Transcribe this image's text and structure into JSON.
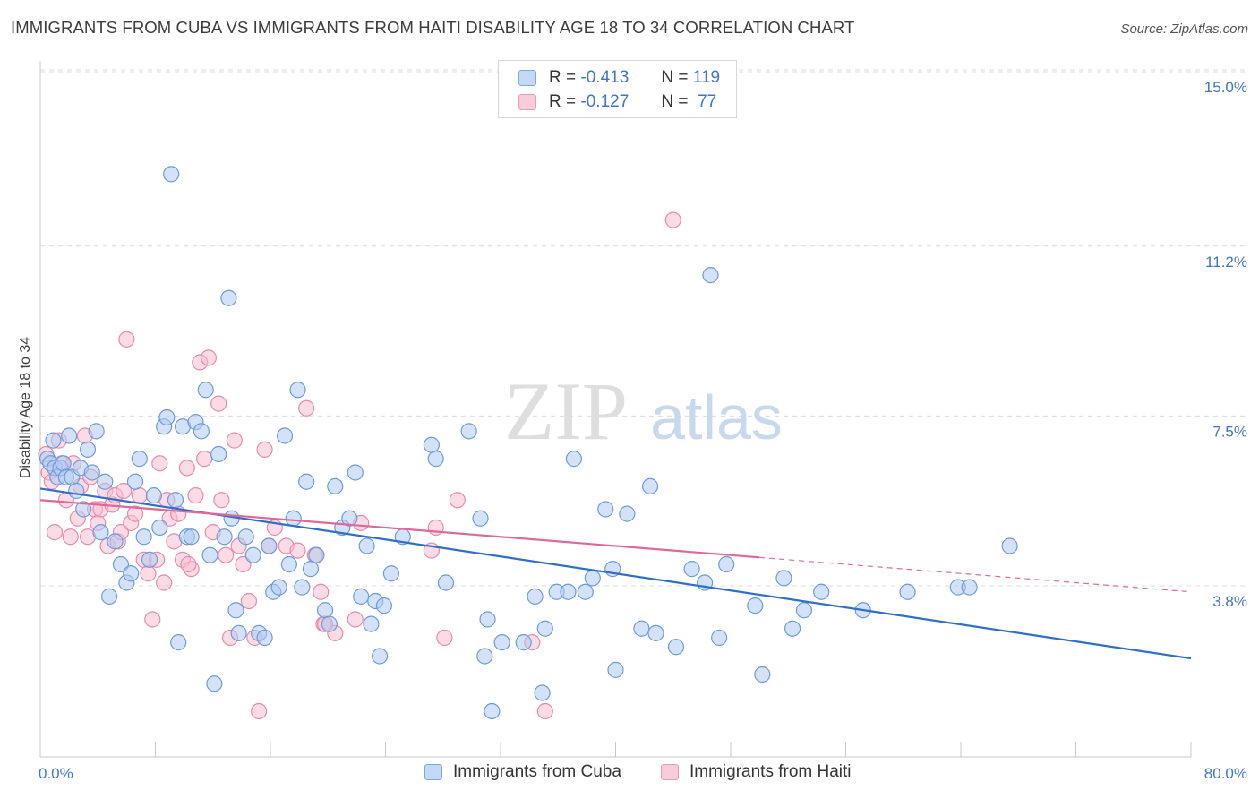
{
  "title": "IMMIGRANTS FROM CUBA VS IMMIGRANTS FROM HAITI DISABILITY AGE 18 TO 34 CORRELATION CHART",
  "source": "Source: ZipAtlas.com",
  "watermark": {
    "zip": "ZIP",
    "atlas": "atlas"
  },
  "stats_legend": [
    {
      "r_label": "R =",
      "r_value": "-0.413",
      "n_label": "N =",
      "n_value": "119"
    },
    {
      "r_label": "R =",
      "r_value": "-0.127",
      "n_label": "N =",
      "n_value": "77"
    }
  ],
  "colors": {
    "cuba_fill": "#aecbf0",
    "cuba_stroke": "#6c9bd9",
    "cuba_line": "#2f6fcc",
    "haiti_fill": "#f7bfd1",
    "haiti_stroke": "#e88aa9",
    "haiti_line": "#e0679a",
    "grid": "#dcdcdc",
    "axis_text": "#3f76c9"
  },
  "chart_data": {
    "type": "scatter",
    "title": "IMMIGRANTS FROM CUBA VS IMMIGRANTS FROM HAITI DISABILITY AGE 18 TO 34 CORRELATION CHART",
    "xlabel": "",
    "ylabel": "Disability Age 18 to 34",
    "xlim": [
      0,
      80
    ],
    "ylim": [
      0.5,
      15.8
    ],
    "x_tick_labels": [
      "0.0%",
      "80.0%"
    ],
    "y_ticks": [
      3.8,
      7.5,
      11.2,
      15.0
    ],
    "y_tick_labels": [
      "3.8%",
      "7.5%",
      "11.2%",
      "15.0%"
    ],
    "grid": true,
    "legend_position": "bottom",
    "series": [
      {
        "name": "Immigrants from Cuba",
        "color": "#aecbf0",
        "trend": {
          "x": [
            0,
            80
          ],
          "y": [
            6.25,
            2.55
          ]
        },
        "points": [
          [
            0.5,
            6.9
          ],
          [
            0.7,
            6.8
          ],
          [
            0.9,
            7.3
          ],
          [
            1.0,
            6.7
          ],
          [
            1.2,
            6.5
          ],
          [
            1.4,
            6.7
          ],
          [
            1.6,
            6.8
          ],
          [
            1.8,
            6.5
          ],
          [
            2.0,
            7.4
          ],
          [
            2.2,
            6.5
          ],
          [
            2.5,
            6.2
          ],
          [
            2.8,
            6.7
          ],
          [
            3.0,
            5.8
          ],
          [
            3.3,
            7.1
          ],
          [
            3.6,
            6.6
          ],
          [
            3.9,
            7.5
          ],
          [
            4.2,
            5.3
          ],
          [
            4.5,
            6.4
          ],
          [
            4.8,
            3.9
          ],
          [
            5.2,
            5.1
          ],
          [
            5.6,
            4.6
          ],
          [
            6.0,
            4.2
          ],
          [
            6.3,
            4.4
          ],
          [
            6.6,
            6.4
          ],
          [
            6.9,
            6.9
          ],
          [
            7.2,
            5.2
          ],
          [
            7.6,
            4.7
          ],
          [
            7.9,
            6.1
          ],
          [
            8.3,
            5.4
          ],
          [
            8.6,
            7.6
          ],
          [
            8.8,
            7.8
          ],
          [
            9.1,
            13.1
          ],
          [
            9.4,
            6.0
          ],
          [
            9.6,
            2.9
          ],
          [
            9.9,
            7.6
          ],
          [
            10.2,
            5.2
          ],
          [
            10.5,
            5.2
          ],
          [
            10.8,
            7.7
          ],
          [
            11.2,
            7.5
          ],
          [
            11.5,
            8.4
          ],
          [
            11.8,
            4.8
          ],
          [
            12.1,
            2.0
          ],
          [
            12.4,
            7.0
          ],
          [
            12.8,
            5.2
          ],
          [
            13.1,
            10.4
          ],
          [
            13.3,
            5.6
          ],
          [
            13.6,
            3.6
          ],
          [
            13.8,
            3.1
          ],
          [
            14.3,
            5.2
          ],
          [
            14.8,
            4.8
          ],
          [
            15.2,
            3.1
          ],
          [
            15.6,
            3.0
          ],
          [
            15.9,
            5.0
          ],
          [
            16.2,
            4.0
          ],
          [
            16.6,
            4.1
          ],
          [
            17.0,
            7.4
          ],
          [
            17.3,
            4.6
          ],
          [
            17.6,
            5.6
          ],
          [
            17.9,
            8.4
          ],
          [
            18.2,
            4.1
          ],
          [
            18.5,
            6.4
          ],
          [
            18.8,
            4.5
          ],
          [
            19.2,
            4.8
          ],
          [
            19.8,
            3.6
          ],
          [
            20.1,
            3.3
          ],
          [
            20.5,
            6.3
          ],
          [
            21.0,
            5.4
          ],
          [
            21.5,
            5.6
          ],
          [
            21.9,
            6.6
          ],
          [
            22.3,
            3.9
          ],
          [
            22.7,
            5.0
          ],
          [
            23.0,
            3.3
          ],
          [
            23.3,
            3.8
          ],
          [
            23.6,
            2.6
          ],
          [
            23.9,
            3.7
          ],
          [
            24.4,
            4.4
          ],
          [
            25.2,
            5.2
          ],
          [
            27.2,
            7.2
          ],
          [
            27.5,
            6.9
          ],
          [
            28.2,
            4.2
          ],
          [
            29.8,
            7.5
          ],
          [
            30.6,
            5.6
          ],
          [
            30.9,
            2.6
          ],
          [
            31.1,
            3.4
          ],
          [
            31.4,
            1.4
          ],
          [
            32.1,
            2.9
          ],
          [
            33.6,
            2.9
          ],
          [
            34.4,
            3.9
          ],
          [
            34.9,
            1.8
          ],
          [
            35.1,
            3.2
          ],
          [
            35.9,
            4.0
          ],
          [
            36.7,
            4.0
          ],
          [
            37.1,
            6.9
          ],
          [
            37.9,
            4.0
          ],
          [
            38.4,
            4.3
          ],
          [
            39.3,
            5.8
          ],
          [
            39.8,
            4.5
          ],
          [
            40.0,
            2.3
          ],
          [
            40.8,
            5.7
          ],
          [
            41.8,
            3.2
          ],
          [
            42.4,
            6.3
          ],
          [
            42.8,
            3.1
          ],
          [
            44.2,
            2.8
          ],
          [
            45.3,
            4.5
          ],
          [
            46.2,
            4.2
          ],
          [
            46.6,
            10.9
          ],
          [
            47.2,
            3.0
          ],
          [
            47.7,
            4.6
          ],
          [
            49.7,
            3.7
          ],
          [
            50.2,
            2.2
          ],
          [
            51.7,
            4.3
          ],
          [
            52.3,
            3.2
          ],
          [
            53.1,
            3.6
          ],
          [
            54.3,
            4.0
          ],
          [
            57.2,
            3.6
          ],
          [
            60.3,
            4.0
          ],
          [
            63.8,
            4.1
          ],
          [
            64.6,
            4.1
          ],
          [
            67.4,
            5.0
          ]
        ]
      },
      {
        "name": "Immigrants from Haiti",
        "color": "#f7bfd1",
        "trend": {
          "x": [
            0,
            50
          ],
          "y": [
            6.0,
            4.75
          ]
        },
        "trend_dashed": {
          "x": [
            50,
            80
          ],
          "y": [
            4.75,
            4.0
          ]
        },
        "points": [
          [
            0.4,
            7.0
          ],
          [
            0.6,
            6.6
          ],
          [
            0.8,
            6.4
          ],
          [
            1.0,
            5.3
          ],
          [
            1.3,
            7.3
          ],
          [
            1.5,
            6.8
          ],
          [
            1.8,
            6.0
          ],
          [
            2.1,
            5.2
          ],
          [
            2.3,
            6.8
          ],
          [
            2.6,
            5.6
          ],
          [
            2.8,
            6.3
          ],
          [
            3.1,
            7.4
          ],
          [
            3.3,
            5.2
          ],
          [
            3.5,
            6.5
          ],
          [
            3.8,
            5.8
          ],
          [
            4.0,
            5.5
          ],
          [
            4.2,
            5.8
          ],
          [
            4.5,
            6.2
          ],
          [
            4.7,
            5.0
          ],
          [
            5.0,
            5.9
          ],
          [
            5.2,
            6.1
          ],
          [
            5.4,
            5.1
          ],
          [
            5.6,
            5.3
          ],
          [
            5.8,
            6.2
          ],
          [
            6.0,
            9.5
          ],
          [
            6.3,
            5.5
          ],
          [
            6.6,
            5.7
          ],
          [
            6.9,
            6.1
          ],
          [
            7.2,
            4.7
          ],
          [
            7.5,
            4.4
          ],
          [
            7.8,
            3.4
          ],
          [
            8.1,
            4.7
          ],
          [
            8.3,
            6.8
          ],
          [
            8.6,
            4.2
          ],
          [
            8.8,
            6.0
          ],
          [
            9.0,
            5.6
          ],
          [
            9.3,
            5.1
          ],
          [
            9.6,
            5.7
          ],
          [
            9.9,
            4.7
          ],
          [
            10.2,
            6.7
          ],
          [
            10.5,
            4.5
          ],
          [
            10.8,
            6.1
          ],
          [
            11.1,
            9.0
          ],
          [
            11.4,
            6.9
          ],
          [
            11.7,
            9.1
          ],
          [
            12.0,
            5.3
          ],
          [
            12.4,
            8.1
          ],
          [
            12.6,
            6.0
          ],
          [
            12.9,
            4.8
          ],
          [
            13.2,
            3.0
          ],
          [
            13.5,
            7.3
          ],
          [
            13.8,
            5.0
          ],
          [
            14.1,
            4.6
          ],
          [
            14.5,
            3.8
          ],
          [
            14.9,
            3.0
          ],
          [
            15.2,
            1.4
          ],
          [
            15.6,
            7.1
          ],
          [
            15.9,
            5.0
          ],
          [
            16.3,
            5.4
          ],
          [
            17.1,
            5.0
          ],
          [
            17.9,
            4.9
          ],
          [
            18.5,
            8.0
          ],
          [
            19.1,
            4.8
          ],
          [
            19.5,
            4.0
          ],
          [
            19.7,
            3.3
          ],
          [
            20.5,
            3.1
          ],
          [
            21.9,
            3.4
          ],
          [
            22.3,
            5.5
          ],
          [
            27.2,
            4.9
          ],
          [
            27.5,
            5.4
          ],
          [
            28.1,
            3.0
          ],
          [
            29.0,
            6.0
          ],
          [
            34.2,
            2.9
          ],
          [
            35.1,
            1.4
          ],
          [
            44.0,
            12.1
          ],
          [
            19.8,
            3.3
          ],
          [
            10.3,
            4.6
          ]
        ]
      }
    ]
  },
  "bottom_legend": [
    "Immigrants from Cuba",
    "Immigrants from Haiti"
  ]
}
